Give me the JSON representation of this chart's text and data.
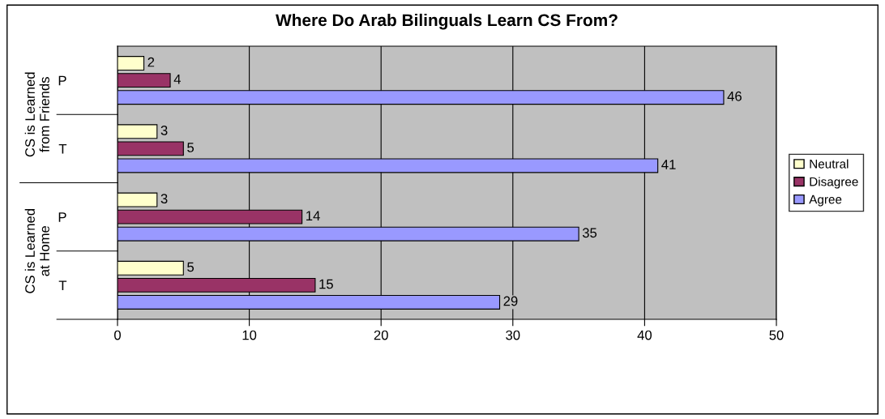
{
  "chart_data": {
    "type": "bar",
    "orientation": "horizontal",
    "title": "Where Do Arab Bilinguals Learn CS From?",
    "categories": [
      "P",
      "T",
      "P",
      "T"
    ],
    "annotations": [
      "CS is Learned\nfrom Friends",
      "CS is Learned\nat Home"
    ],
    "series": [
      {
        "name": "Neutral",
        "color": "#ffffcc",
        "values": [
          2,
          3,
          3,
          5
        ]
      },
      {
        "name": "Disagree",
        "color": "#993366",
        "values": [
          4,
          5,
          14,
          15
        ]
      },
      {
        "name": "Agree",
        "color": "#9999ff",
        "values": [
          46,
          41,
          35,
          29
        ]
      }
    ],
    "xlim": [
      0,
      50
    ],
    "xticks": [
      0,
      10,
      20,
      30,
      40,
      50
    ],
    "grid": "x",
    "legend": "right",
    "data_labels": true
  }
}
